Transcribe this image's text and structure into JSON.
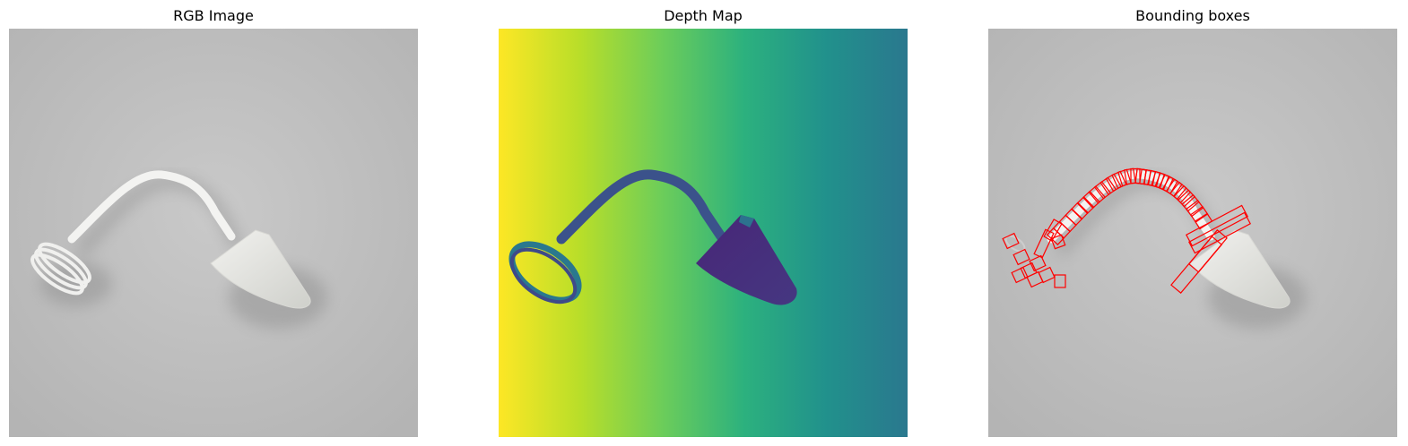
{
  "panels": {
    "rgb": {
      "title": "RGB Image"
    },
    "depth": {
      "title": "Depth Map"
    },
    "boxes": {
      "title": "Bounding boxes"
    }
  },
  "colors": {
    "background": "#ffffff",
    "photo_bg": "#bdbdbd",
    "object": "#e8e8e6",
    "box_stroke": "#ff0000",
    "viridis": [
      "#fde725",
      "#a0da39",
      "#4ac16d",
      "#1fa187",
      "#277f8e",
      "#365c8d",
      "#46327e",
      "#440154"
    ]
  }
}
